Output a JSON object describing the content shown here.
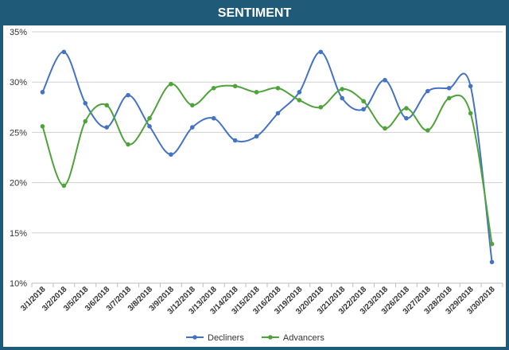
{
  "chart_data": {
    "type": "line",
    "title": "SENTIMENT",
    "xlabel": "",
    "ylabel": "",
    "ylim": [
      10,
      35
    ],
    "yticks": [
      10,
      15,
      20,
      25,
      30,
      35
    ],
    "ytick_labels": [
      "10%",
      "15%",
      "20%",
      "25%",
      "30%",
      "35%"
    ],
    "grid": "horizontal",
    "legend_position": "bottom",
    "categories": [
      "3/1/2018",
      "3/2/2018",
      "3/5/2018",
      "3/6/2018",
      "3/7/2018",
      "3/8/2018",
      "3/9/2018",
      "3/12/2018",
      "3/13/2018",
      "3/14/2018",
      "3/15/2018",
      "3/16/2018",
      "3/19/2018",
      "3/20/2018",
      "3/21/2018",
      "3/22/2018",
      "3/23/2018",
      "3/26/2018",
      "3/27/2018",
      "3/28/2018",
      "3/29/2018",
      "3/30/2018"
    ],
    "series": [
      {
        "name": "Decliners",
        "color": "#4472c4",
        "values": [
          29.0,
          33.0,
          27.9,
          25.5,
          28.7,
          25.6,
          22.8,
          25.5,
          26.4,
          24.2,
          24.6,
          26.9,
          29.0,
          33.0,
          28.4,
          27.3,
          30.2,
          26.4,
          29.1,
          29.4,
          29.6,
          12.1
        ]
      },
      {
        "name": "Advancers",
        "color": "#4ea33a",
        "values": [
          25.6,
          19.7,
          26.1,
          27.7,
          23.8,
          26.4,
          29.8,
          27.7,
          29.4,
          29.6,
          29.0,
          29.4,
          28.2,
          27.5,
          29.3,
          28.1,
          25.4,
          27.4,
          25.2,
          28.4,
          26.9,
          13.9
        ]
      }
    ]
  }
}
